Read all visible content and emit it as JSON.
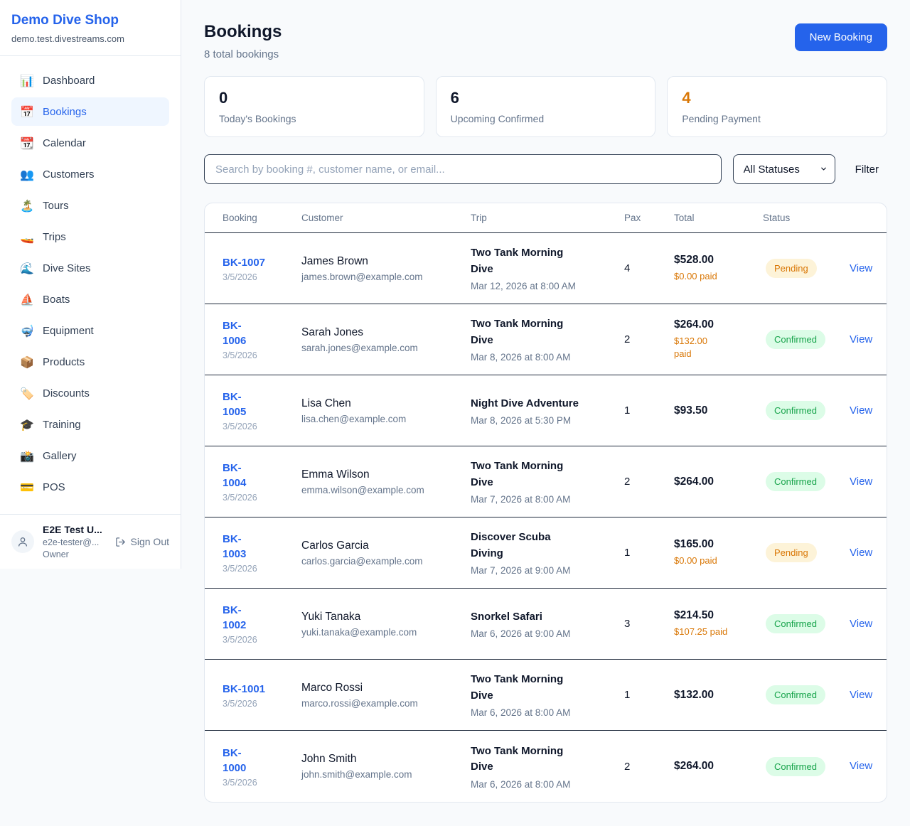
{
  "colors": {
    "accent": "#2563eb",
    "warning": "#d97706",
    "pending_bg": "#fdf3d8",
    "pending_text": "#d97706",
    "confirmed_bg": "#dcfce7",
    "confirmed_text": "#16a34a"
  },
  "brand": {
    "name": "Demo Dive Shop",
    "domain": "demo.test.divestreams.com"
  },
  "sidebar": {
    "items": [
      {
        "icon": "📊",
        "icon_name": "bar-chart-icon",
        "label": "Dashboard",
        "active": false
      },
      {
        "icon": "📅",
        "icon_name": "calendar-icon",
        "label": "Bookings",
        "active": true
      },
      {
        "icon": "📆",
        "icon_name": "tear-off-calendar-icon",
        "label": "Calendar",
        "active": false
      },
      {
        "icon": "👥",
        "icon_name": "people-icon",
        "label": "Customers",
        "active": false
      },
      {
        "icon": "🏝️",
        "icon_name": "island-icon",
        "label": "Tours",
        "active": false
      },
      {
        "icon": "🚤",
        "icon_name": "speedboat-icon",
        "label": "Trips",
        "active": false
      },
      {
        "icon": "🌊",
        "icon_name": "wave-icon",
        "label": "Dive Sites",
        "active": false
      },
      {
        "icon": "⛵",
        "icon_name": "sailboat-icon",
        "label": "Boats",
        "active": false
      },
      {
        "icon": "🤿",
        "icon_name": "dive-mask-icon",
        "label": "Equipment",
        "active": false
      },
      {
        "icon": "📦",
        "icon_name": "package-icon",
        "label": "Products",
        "active": false
      },
      {
        "icon": "🏷️",
        "icon_name": "tag-icon",
        "label": "Discounts",
        "active": false
      },
      {
        "icon": "🎓",
        "icon_name": "graduation-cap-icon",
        "label": "Training",
        "active": false
      },
      {
        "icon": "📸",
        "icon_name": "camera-icon",
        "label": "Gallery",
        "active": false
      },
      {
        "icon": "💳",
        "icon_name": "credit-card-icon",
        "label": "POS",
        "active": false
      }
    ]
  },
  "user": {
    "name": "E2E Test U...",
    "email": "e2e-tester@...",
    "role": "Owner",
    "sign_out_label": "Sign Out"
  },
  "header": {
    "title": "Bookings",
    "subtitle": "8 total bookings",
    "new_booking_label": "New Booking"
  },
  "stats": [
    {
      "value": "0",
      "label": "Today's Bookings",
      "color_key": ""
    },
    {
      "value": "6",
      "label": "Upcoming Confirmed",
      "color_key": ""
    },
    {
      "value": "4",
      "label": "Pending Payment",
      "color_key": "warning"
    }
  ],
  "filters": {
    "search_placeholder": "Search by booking #, customer name, or email...",
    "status_selected": "All Statuses",
    "filter_label": "Filter"
  },
  "table": {
    "columns": [
      "Booking",
      "Customer",
      "Trip",
      "Pax",
      "Total",
      "Status"
    ],
    "rows": [
      {
        "ref_lines": [
          "BK-1007"
        ],
        "date": "3/5/2026",
        "customer": "James Brown",
        "email": "james.brown@example.com",
        "trip_lines": [
          "Two Tank Morning",
          "Dive"
        ],
        "trip_date": "Mar 12, 2026 at 8:00 AM",
        "pax": "4",
        "total": "$528.00",
        "paid_lines": [
          "$0.00 paid"
        ],
        "status": "Pending",
        "view_label": "View"
      },
      {
        "ref_lines": [
          "BK-",
          "1006"
        ],
        "date": "3/5/2026",
        "customer": "Sarah Jones",
        "email": "sarah.jones@example.com",
        "trip_lines": [
          "Two Tank Morning",
          "Dive"
        ],
        "trip_date": "Mar 8, 2026 at 8:00 AM",
        "pax": "2",
        "total": "$264.00",
        "paid_lines": [
          "$132.00",
          "paid"
        ],
        "status": "Confirmed",
        "view_label": "View"
      },
      {
        "ref_lines": [
          "BK-",
          "1005"
        ],
        "date": "3/5/2026",
        "customer": "Lisa Chen",
        "email": "lisa.chen@example.com",
        "trip_lines": [
          "Night Dive Adventure"
        ],
        "trip_date": "Mar 8, 2026 at 5:30 PM",
        "pax": "1",
        "total": "$93.50",
        "paid_lines": [],
        "status": "Confirmed",
        "view_label": "View"
      },
      {
        "ref_lines": [
          "BK-",
          "1004"
        ],
        "date": "3/5/2026",
        "customer": "Emma Wilson",
        "email": "emma.wilson@example.com",
        "trip_lines": [
          "Two Tank Morning",
          "Dive"
        ],
        "trip_date": "Mar 7, 2026 at 8:00 AM",
        "pax": "2",
        "total": "$264.00",
        "paid_lines": [],
        "status": "Confirmed",
        "view_label": "View"
      },
      {
        "ref_lines": [
          "BK-",
          "1003"
        ],
        "date": "3/5/2026",
        "customer": "Carlos Garcia",
        "email": "carlos.garcia@example.com",
        "trip_lines": [
          "Discover Scuba",
          "Diving"
        ],
        "trip_date": "Mar 7, 2026 at 9:00 AM",
        "pax": "1",
        "total": "$165.00",
        "paid_lines": [
          "$0.00 paid"
        ],
        "status": "Pending",
        "view_label": "View"
      },
      {
        "ref_lines": [
          "BK-",
          "1002"
        ],
        "date": "3/5/2026",
        "customer": "Yuki Tanaka",
        "email": "yuki.tanaka@example.com",
        "trip_lines": [
          "Snorkel Safari"
        ],
        "trip_date": "Mar 6, 2026 at 9:00 AM",
        "pax": "3",
        "total": "$214.50",
        "paid_lines": [
          "$107.25 paid"
        ],
        "status": "Confirmed",
        "view_label": "View"
      },
      {
        "ref_lines": [
          "BK-1001"
        ],
        "date": "3/5/2026",
        "customer": "Marco Rossi",
        "email": "marco.rossi@example.com",
        "trip_lines": [
          "Two Tank Morning",
          "Dive"
        ],
        "trip_date": "Mar 6, 2026 at 8:00 AM",
        "pax": "1",
        "total": "$132.00",
        "paid_lines": [],
        "status": "Confirmed",
        "view_label": "View"
      },
      {
        "ref_lines": [
          "BK-",
          "1000"
        ],
        "date": "3/5/2026",
        "customer": "John Smith",
        "email": "john.smith@example.com",
        "trip_lines": [
          "Two Tank Morning",
          "Dive"
        ],
        "trip_date": "Mar 6, 2026 at 8:00 AM",
        "pax": "2",
        "total": "$264.00",
        "paid_lines": [],
        "status": "Confirmed",
        "view_label": "View"
      }
    ]
  }
}
